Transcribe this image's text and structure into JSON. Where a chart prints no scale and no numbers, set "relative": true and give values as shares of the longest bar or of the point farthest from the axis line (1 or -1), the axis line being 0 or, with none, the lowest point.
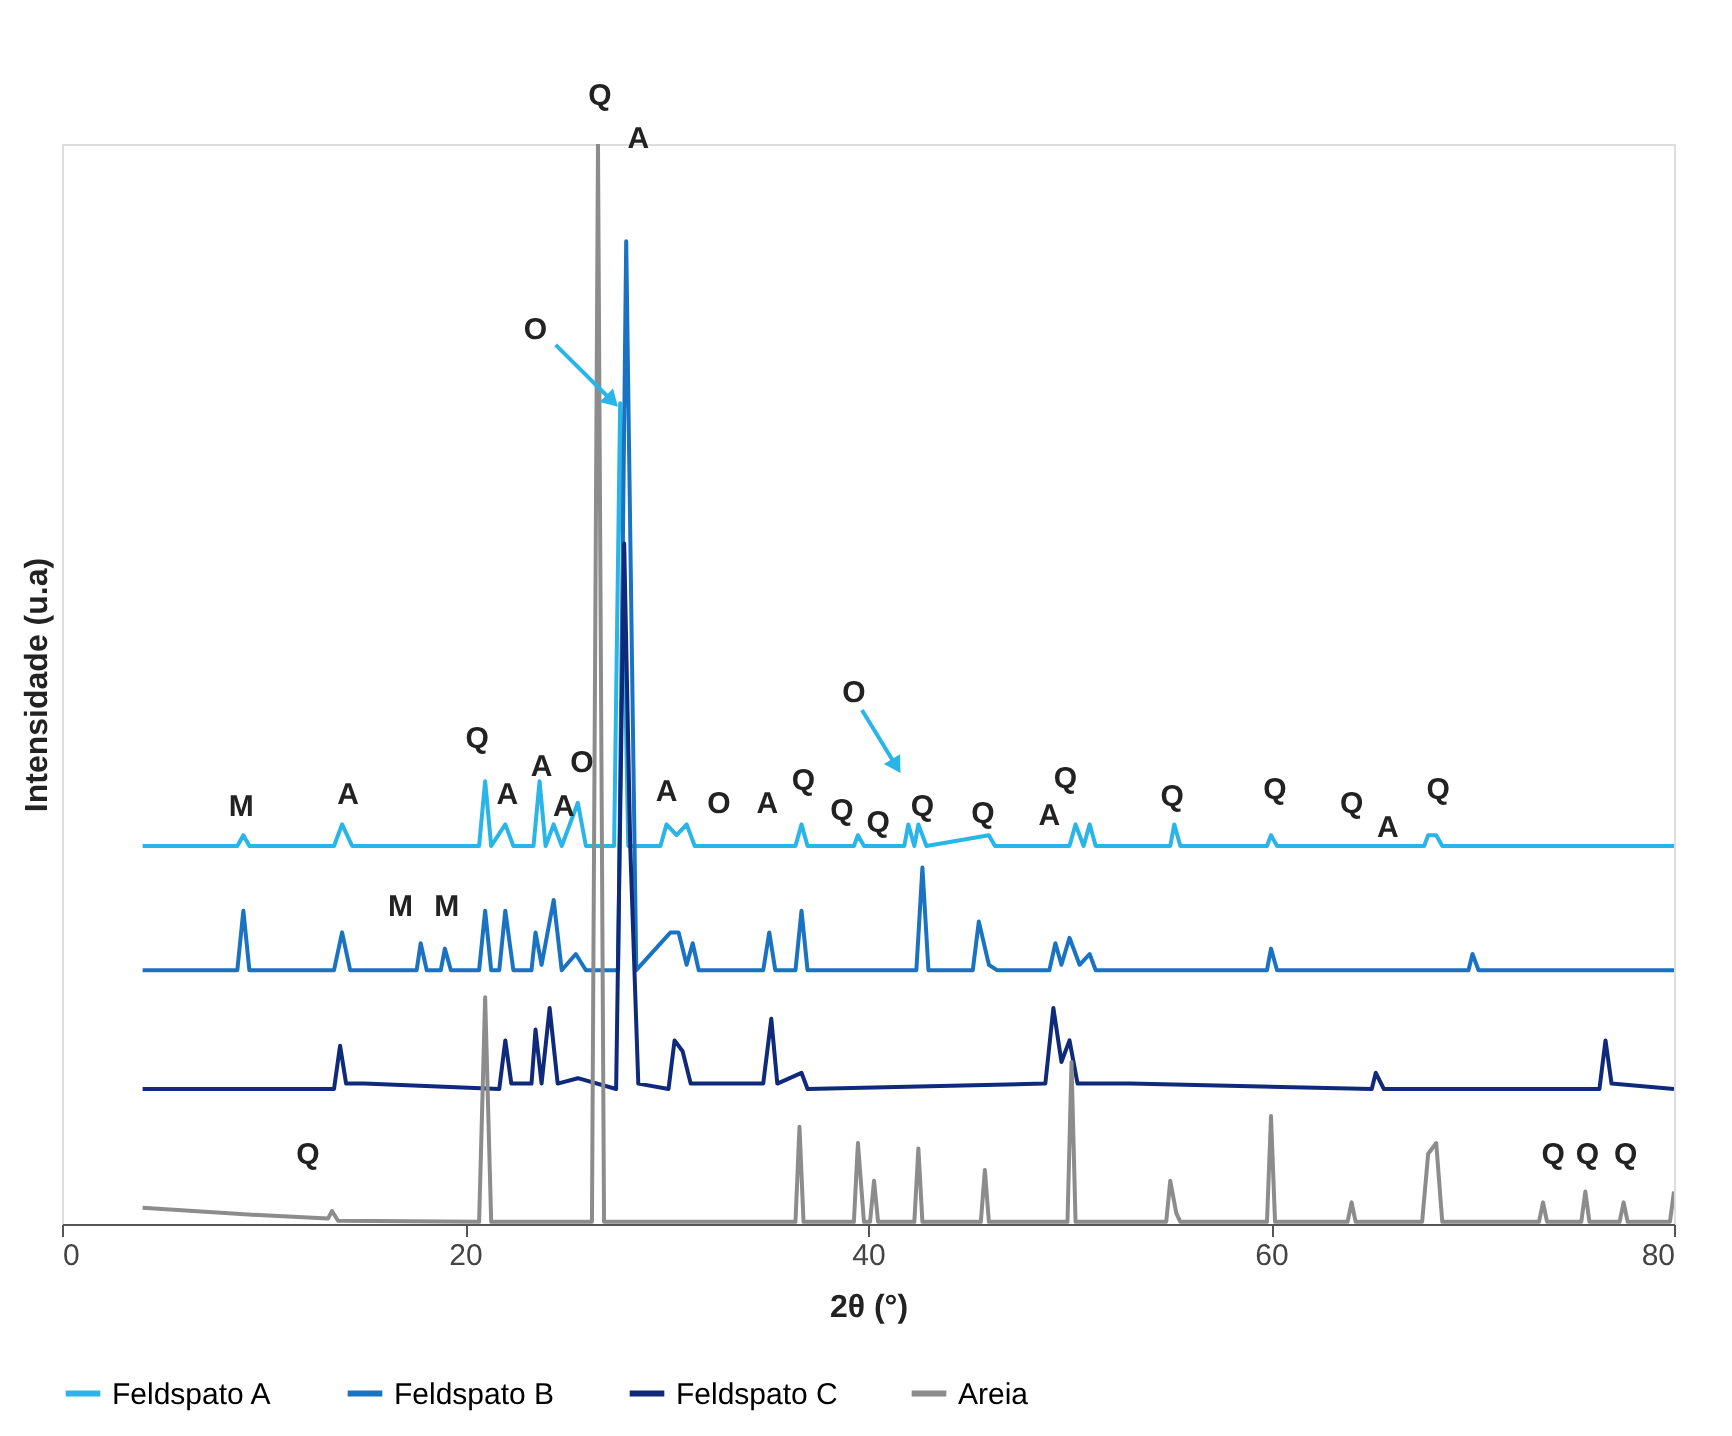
{
  "chart_data": {
    "type": "line",
    "relative": true,
    "xlabel": "2θ (°)",
    "ylabel": "Intensidade (u.a)",
    "xlim": [
      0,
      80
    ],
    "xticks": [
      0,
      20,
      40,
      60,
      80
    ],
    "grid": false,
    "legend": "bottom",
    "marker": "none",
    "line_style": "solid",
    "series": [
      {
        "name": "Feldspato A",
        "color": "#29b5e8",
        "x": [
          4,
          8.7,
          9,
          9.3,
          13.5,
          13.9,
          14.4,
          18,
          20.7,
          21,
          21.3,
          22,
          22.4,
          23.4,
          23.7,
          24,
          24.4,
          24.8,
          25.6,
          26,
          27.4,
          27.7,
          28.1,
          29.7,
          30,
          30.5,
          31,
          31.4,
          36.4,
          36.7,
          37,
          39.3,
          39.5,
          39.8,
          41.8,
          42,
          42.3,
          42.5,
          42.9,
          46,
          46.3,
          50,
          50.3,
          50.7,
          51,
          51.3,
          55,
          55.2,
          55.5,
          59.8,
          60,
          60.3,
          64,
          67.6,
          67.8,
          68.2,
          68.5,
          76,
          80
        ],
        "values": [
          0.35,
          0.35,
          0.36,
          0.35,
          0.35,
          0.37,
          0.35,
          0.35,
          0.35,
          0.41,
          0.35,
          0.37,
          0.35,
          0.35,
          0.41,
          0.35,
          0.37,
          0.35,
          0.39,
          0.35,
          0.35,
          0.76,
          0.35,
          0.35,
          0.37,
          0.36,
          0.37,
          0.35,
          0.35,
          0.37,
          0.35,
          0.35,
          0.36,
          0.35,
          0.35,
          0.37,
          0.35,
          0.37,
          0.35,
          0.36,
          0.35,
          0.35,
          0.37,
          0.35,
          0.37,
          0.35,
          0.35,
          0.37,
          0.35,
          0.35,
          0.36,
          0.35,
          0.35,
          0.35,
          0.36,
          0.36,
          0.35,
          0.35,
          0.35
        ]
      },
      {
        "name": "Feldspato B",
        "color": "#1a73c2",
        "x": [
          4,
          8.7,
          9,
          9.3,
          13.5,
          13.9,
          14.3,
          17.6,
          17.8,
          18.1,
          18.8,
          19,
          19.3,
          20.7,
          21,
          21.3,
          21.7,
          22,
          22.4,
          23.3,
          23.5,
          23.8,
          24.4,
          24.8,
          25.5,
          26,
          27.6,
          28,
          28.5,
          30.2,
          30.6,
          31,
          31.3,
          31.6,
          34.8,
          35.1,
          35.4,
          36.4,
          36.7,
          37,
          42.4,
          42.7,
          43,
          45.2,
          45.5,
          46,
          46.4,
          49,
          49.3,
          49.6,
          50,
          50.5,
          51,
          51.3,
          59.8,
          60,
          60.3,
          69.8,
          70,
          70.3,
          80
        ],
        "values": [
          0.235,
          0.235,
          0.29,
          0.235,
          0.235,
          0.27,
          0.235,
          0.235,
          0.26,
          0.235,
          0.235,
          0.255,
          0.235,
          0.235,
          0.29,
          0.235,
          0.235,
          0.29,
          0.235,
          0.235,
          0.27,
          0.24,
          0.3,
          0.235,
          0.25,
          0.235,
          0.235,
          0.91,
          0.235,
          0.27,
          0.27,
          0.24,
          0.26,
          0.235,
          0.235,
          0.27,
          0.235,
          0.235,
          0.29,
          0.235,
          0.235,
          0.33,
          0.235,
          0.235,
          0.28,
          0.24,
          0.235,
          0.235,
          0.26,
          0.24,
          0.265,
          0.24,
          0.25,
          0.235,
          0.235,
          0.255,
          0.235,
          0.235,
          0.25,
          0.235,
          0.235
        ]
      },
      {
        "name": "Feldspato C",
        "color": "#0f2a7a",
        "x": [
          4,
          13.5,
          13.8,
          14.1,
          15,
          21.7,
          22,
          22.3,
          23.3,
          23.5,
          23.8,
          24.2,
          24.6,
          25.6,
          27.5,
          27.9,
          28.2,
          28.6,
          30.1,
          30.4,
          30.8,
          31.2,
          34.8,
          35.2,
          35.5,
          36.7,
          37,
          48.8,
          49.2,
          49.6,
          50,
          50.4,
          53,
          65,
          65.2,
          65.6,
          76.3,
          76.6,
          76.9,
          80
        ],
        "values": [
          0.125,
          0.125,
          0.165,
          0.13,
          0.13,
          0.125,
          0.17,
          0.13,
          0.13,
          0.18,
          0.13,
          0.2,
          0.13,
          0.135,
          0.125,
          0.63,
          0.35,
          0.13,
          0.125,
          0.17,
          0.16,
          0.13,
          0.13,
          0.19,
          0.13,
          0.14,
          0.125,
          0.13,
          0.2,
          0.15,
          0.17,
          0.13,
          0.13,
          0.125,
          0.14,
          0.125,
          0.125,
          0.17,
          0.13,
          0.125
        ]
      },
      {
        "name": "Areia",
        "color": "#8c8c8c",
        "x": [
          4,
          10,
          13.2,
          13.4,
          13.7,
          20.7,
          21,
          21.3,
          26.3,
          26.6,
          26.9,
          36.4,
          36.6,
          36.8,
          39.3,
          39.5,
          39.8,
          40.1,
          40.3,
          40.5,
          42.3,
          42.5,
          42.7,
          45.6,
          45.8,
          46,
          49.9,
          50.1,
          50.3,
          54.8,
          55,
          55.3,
          55.5,
          59.8,
          60,
          60.2,
          63.8,
          64,
          64.2,
          67.5,
          67.8,
          68.2,
          68.5,
          73.3,
          73.5,
          73.7,
          75.4,
          75.6,
          75.8,
          77.3,
          77.5,
          77.7,
          79.8,
          80
        ],
        "values": [
          0.015,
          0.008,
          0.005,
          0.012,
          0.003,
          0.002,
          0.21,
          0.002,
          0.002,
          1.0,
          0.002,
          0.002,
          0.09,
          0.002,
          0.002,
          0.075,
          0.002,
          0.002,
          0.04,
          0.002,
          0.002,
          0.07,
          0.002,
          0.002,
          0.05,
          0.002,
          0.002,
          0.15,
          0.002,
          0.002,
          0.04,
          0.01,
          0.002,
          0.002,
          0.1,
          0.002,
          0.002,
          0.02,
          0.002,
          0.002,
          0.065,
          0.075,
          0.002,
          0.002,
          0.02,
          0.002,
          0.002,
          0.03,
          0.002,
          0.002,
          0.02,
          0.002,
          0.002,
          0.03
        ]
      }
    ],
    "annotations": [
      "Q",
      "A",
      "O",
      "M",
      "A",
      "Q",
      "A",
      "A",
      "O",
      "A",
      "A",
      "O",
      "A",
      "Q",
      "Q",
      "Q",
      "O",
      "Q",
      "Q",
      "A",
      "Q",
      "Q",
      "Q",
      "Q",
      "A",
      "Q",
      "M",
      "M",
      "Q",
      "Q",
      "Q",
      "Q"
    ]
  }
}
